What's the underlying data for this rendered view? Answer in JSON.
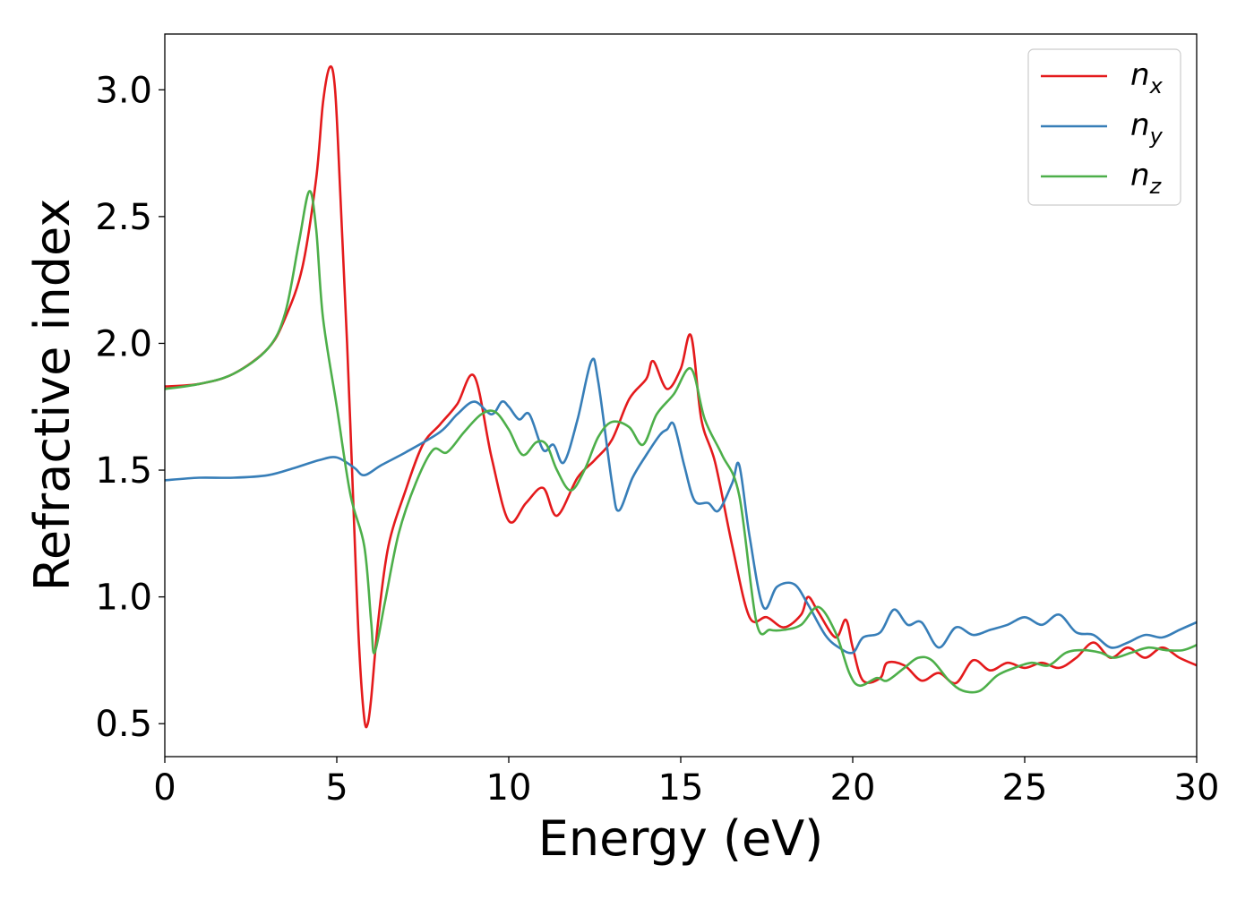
{
  "chart_data": {
    "type": "line",
    "title": "",
    "xlabel": "Energy (eV)",
    "ylabel": "Refractive index",
    "xlim": [
      0,
      30
    ],
    "ylim": [
      0.37,
      3.22
    ],
    "x_ticks": [
      0,
      5,
      10,
      15,
      20,
      25,
      30
    ],
    "x_tick_labels": [
      "0",
      "5",
      "10",
      "15",
      "20",
      "25",
      "30"
    ],
    "y_ticks": [
      0.5,
      1.0,
      1.5,
      2.0,
      2.5,
      3.0
    ],
    "y_tick_labels": [
      "0.5",
      "1.0",
      "1.5",
      "2.0",
      "2.5",
      "3.0"
    ],
    "grid": false,
    "legend_position": "top-right",
    "series": [
      {
        "name": "n",
        "subscript": "x",
        "color": "#e41a1c",
        "points": [
          [
            0,
            1.83
          ],
          [
            1,
            1.84
          ],
          [
            2,
            1.88
          ],
          [
            3,
            1.98
          ],
          [
            3.5,
            2.1
          ],
          [
            4,
            2.3
          ],
          [
            4.4,
            2.65
          ],
          [
            4.6,
            2.95
          ],
          [
            4.8,
            3.09
          ],
          [
            4.95,
            3.0
          ],
          [
            5.1,
            2.6
          ],
          [
            5.3,
            2.0
          ],
          [
            5.5,
            1.3
          ],
          [
            5.65,
            0.8
          ],
          [
            5.8,
            0.52
          ],
          [
            5.9,
            0.5
          ],
          [
            6.0,
            0.6
          ],
          [
            6.2,
            0.9
          ],
          [
            6.5,
            1.2
          ],
          [
            7,
            1.42
          ],
          [
            7.5,
            1.6
          ],
          [
            8,
            1.68
          ],
          [
            8.5,
            1.76
          ],
          [
            9,
            1.87
          ],
          [
            9.5,
            1.55
          ],
          [
            10,
            1.3
          ],
          [
            10.5,
            1.37
          ],
          [
            11,
            1.43
          ],
          [
            11.4,
            1.32
          ],
          [
            12,
            1.47
          ],
          [
            12.5,
            1.54
          ],
          [
            13,
            1.62
          ],
          [
            13.5,
            1.78
          ],
          [
            14,
            1.86
          ],
          [
            14.2,
            1.93
          ],
          [
            14.6,
            1.82
          ],
          [
            15,
            1.9
          ],
          [
            15.3,
            2.03
          ],
          [
            15.6,
            1.7
          ],
          [
            16,
            1.53
          ],
          [
            16.5,
            1.2
          ],
          [
            17,
            0.92
          ],
          [
            17.5,
            0.92
          ],
          [
            18,
            0.88
          ],
          [
            18.5,
            0.93
          ],
          [
            18.7,
            1.0
          ],
          [
            19,
            0.94
          ],
          [
            19.5,
            0.84
          ],
          [
            19.8,
            0.91
          ],
          [
            20,
            0.8
          ],
          [
            20.3,
            0.67
          ],
          [
            20.8,
            0.68
          ],
          [
            21,
            0.74
          ],
          [
            21.5,
            0.73
          ],
          [
            22,
            0.67
          ],
          [
            22.5,
            0.7
          ],
          [
            23,
            0.66
          ],
          [
            23.5,
            0.75
          ],
          [
            24,
            0.71
          ],
          [
            24.5,
            0.74
          ],
          [
            25,
            0.72
          ],
          [
            25.5,
            0.74
          ],
          [
            26,
            0.72
          ],
          [
            26.5,
            0.76
          ],
          [
            27,
            0.82
          ],
          [
            27.5,
            0.76
          ],
          [
            28,
            0.8
          ],
          [
            28.5,
            0.76
          ],
          [
            29,
            0.8
          ],
          [
            29.5,
            0.76
          ],
          [
            30,
            0.73
          ]
        ]
      },
      {
        "name": "n",
        "subscript": "y",
        "color": "#377eb8",
        "points": [
          [
            0,
            1.46
          ],
          [
            1,
            1.47
          ],
          [
            2,
            1.47
          ],
          [
            3,
            1.48
          ],
          [
            3.8,
            1.51
          ],
          [
            4.5,
            1.54
          ],
          [
            5,
            1.55
          ],
          [
            5.5,
            1.51
          ],
          [
            5.8,
            1.48
          ],
          [
            6.3,
            1.52
          ],
          [
            7,
            1.57
          ],
          [
            8,
            1.65
          ],
          [
            8.5,
            1.72
          ],
          [
            9,
            1.77
          ],
          [
            9.5,
            1.72
          ],
          [
            9.8,
            1.77
          ],
          [
            10,
            1.75
          ],
          [
            10.3,
            1.7
          ],
          [
            10.6,
            1.72
          ],
          [
            11,
            1.58
          ],
          [
            11.3,
            1.6
          ],
          [
            11.6,
            1.53
          ],
          [
            12,
            1.7
          ],
          [
            12.4,
            1.93
          ],
          [
            12.6,
            1.85
          ],
          [
            13,
            1.45
          ],
          [
            13.2,
            1.34
          ],
          [
            13.6,
            1.47
          ],
          [
            14,
            1.56
          ],
          [
            14.4,
            1.64
          ],
          [
            14.6,
            1.66
          ],
          [
            14.8,
            1.68
          ],
          [
            15.1,
            1.52
          ],
          [
            15.4,
            1.38
          ],
          [
            15.8,
            1.37
          ],
          [
            16.1,
            1.34
          ],
          [
            16.5,
            1.45
          ],
          [
            16.7,
            1.52
          ],
          [
            17,
            1.24
          ],
          [
            17.4,
            0.96
          ],
          [
            17.8,
            1.04
          ],
          [
            18.3,
            1.05
          ],
          [
            18.7,
            0.97
          ],
          [
            19.2,
            0.85
          ],
          [
            19.6,
            0.8
          ],
          [
            20,
            0.78
          ],
          [
            20.3,
            0.84
          ],
          [
            20.8,
            0.86
          ],
          [
            21.2,
            0.95
          ],
          [
            21.6,
            0.89
          ],
          [
            22,
            0.9
          ],
          [
            22.5,
            0.8
          ],
          [
            23,
            0.88
          ],
          [
            23.5,
            0.85
          ],
          [
            24,
            0.87
          ],
          [
            24.5,
            0.89
          ],
          [
            25,
            0.92
          ],
          [
            25.5,
            0.89
          ],
          [
            26,
            0.93
          ],
          [
            26.5,
            0.86
          ],
          [
            27,
            0.85
          ],
          [
            27.5,
            0.8
          ],
          [
            28,
            0.82
          ],
          [
            28.5,
            0.85
          ],
          [
            29,
            0.84
          ],
          [
            29.5,
            0.87
          ],
          [
            30,
            0.9
          ]
        ]
      },
      {
        "name": "n",
        "subscript": "z",
        "color": "#4daf4a",
        "points": [
          [
            0,
            1.82
          ],
          [
            1,
            1.84
          ],
          [
            2,
            1.88
          ],
          [
            3,
            1.98
          ],
          [
            3.5,
            2.12
          ],
          [
            3.9,
            2.4
          ],
          [
            4.2,
            2.6
          ],
          [
            4.4,
            2.45
          ],
          [
            4.6,
            2.1
          ],
          [
            5,
            1.75
          ],
          [
            5.4,
            1.4
          ],
          [
            5.8,
            1.2
          ],
          [
            6.0,
            0.9
          ],
          [
            6.1,
            0.78
          ],
          [
            6.4,
            0.98
          ],
          [
            6.8,
            1.25
          ],
          [
            7.3,
            1.45
          ],
          [
            7.8,
            1.58
          ],
          [
            8.2,
            1.57
          ],
          [
            8.7,
            1.65
          ],
          [
            9.2,
            1.72
          ],
          [
            9.6,
            1.73
          ],
          [
            10,
            1.66
          ],
          [
            10.4,
            1.56
          ],
          [
            10.8,
            1.61
          ],
          [
            11.1,
            1.6
          ],
          [
            11.4,
            1.5
          ],
          [
            11.8,
            1.42
          ],
          [
            12.2,
            1.5
          ],
          [
            12.6,
            1.63
          ],
          [
            13,
            1.69
          ],
          [
            13.5,
            1.67
          ],
          [
            13.9,
            1.6
          ],
          [
            14.3,
            1.72
          ],
          [
            14.8,
            1.8
          ],
          [
            15.3,
            1.9
          ],
          [
            15.7,
            1.7
          ],
          [
            16.2,
            1.56
          ],
          [
            16.7,
            1.4
          ],
          [
            17.2,
            0.9
          ],
          [
            17.6,
            0.87
          ],
          [
            18,
            0.87
          ],
          [
            18.5,
            0.89
          ],
          [
            19,
            0.96
          ],
          [
            19.5,
            0.86
          ],
          [
            19.9,
            0.7
          ],
          [
            20.2,
            0.65
          ],
          [
            20.7,
            0.68
          ],
          [
            21,
            0.67
          ],
          [
            21.5,
            0.72
          ],
          [
            21.9,
            0.76
          ],
          [
            22.3,
            0.75
          ],
          [
            22.8,
            0.67
          ],
          [
            23.2,
            0.63
          ],
          [
            23.7,
            0.63
          ],
          [
            24.2,
            0.69
          ],
          [
            24.7,
            0.72
          ],
          [
            25.2,
            0.74
          ],
          [
            25.7,
            0.73
          ],
          [
            26.2,
            0.78
          ],
          [
            26.7,
            0.79
          ],
          [
            27.2,
            0.78
          ],
          [
            27.6,
            0.76
          ],
          [
            28.1,
            0.78
          ],
          [
            28.6,
            0.8
          ],
          [
            29.1,
            0.79
          ],
          [
            29.6,
            0.79
          ],
          [
            30,
            0.81
          ]
        ]
      }
    ]
  }
}
